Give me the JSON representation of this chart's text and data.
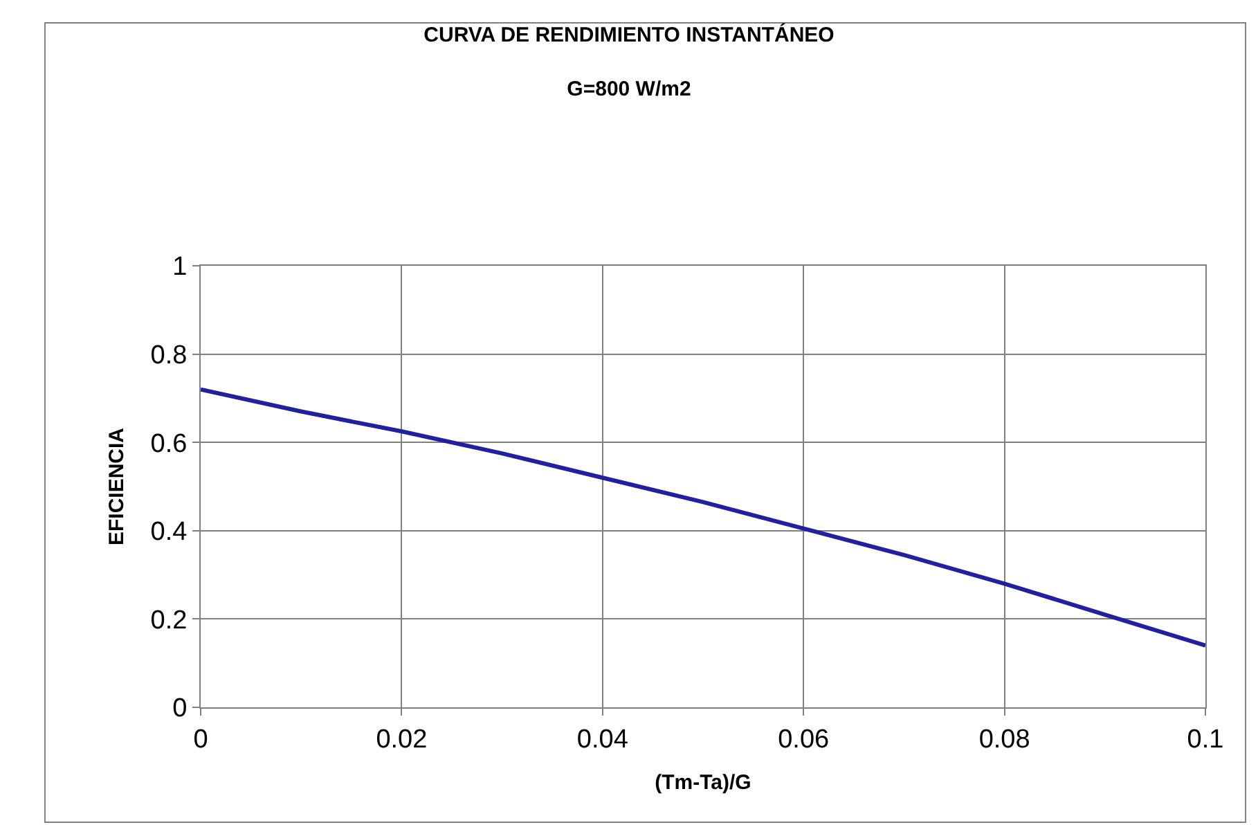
{
  "chart_data": {
    "type": "line",
    "title": "CURVA DE RENDIMIENTO INSTANTÁNEO",
    "subtitle": "G=800 W/m2",
    "xlabel": "(Tm-Ta)/G",
    "ylabel": "EFICIENCIA",
    "x": [
      0,
      0.01,
      0.02,
      0.03,
      0.04,
      0.05,
      0.06,
      0.07,
      0.08,
      0.09,
      0.1
    ],
    "series": [
      {
        "color": "#2020a0",
        "values": [
          0.72,
          0.67,
          0.625,
          0.575,
          0.52,
          0.465,
          0.405,
          0.345,
          0.28,
          0.21,
          0.14
        ]
      }
    ],
    "xlim": [
      0,
      0.1
    ],
    "xticks": [
      0,
      0.02,
      0.04,
      0.06,
      0.08,
      0.1
    ],
    "ylim": [
      0,
      1
    ],
    "yticks": [
      0,
      0.2,
      0.4,
      0.6,
      0.8,
      1
    ],
    "grid": true,
    "marker": "none",
    "line_style": "solid"
  }
}
